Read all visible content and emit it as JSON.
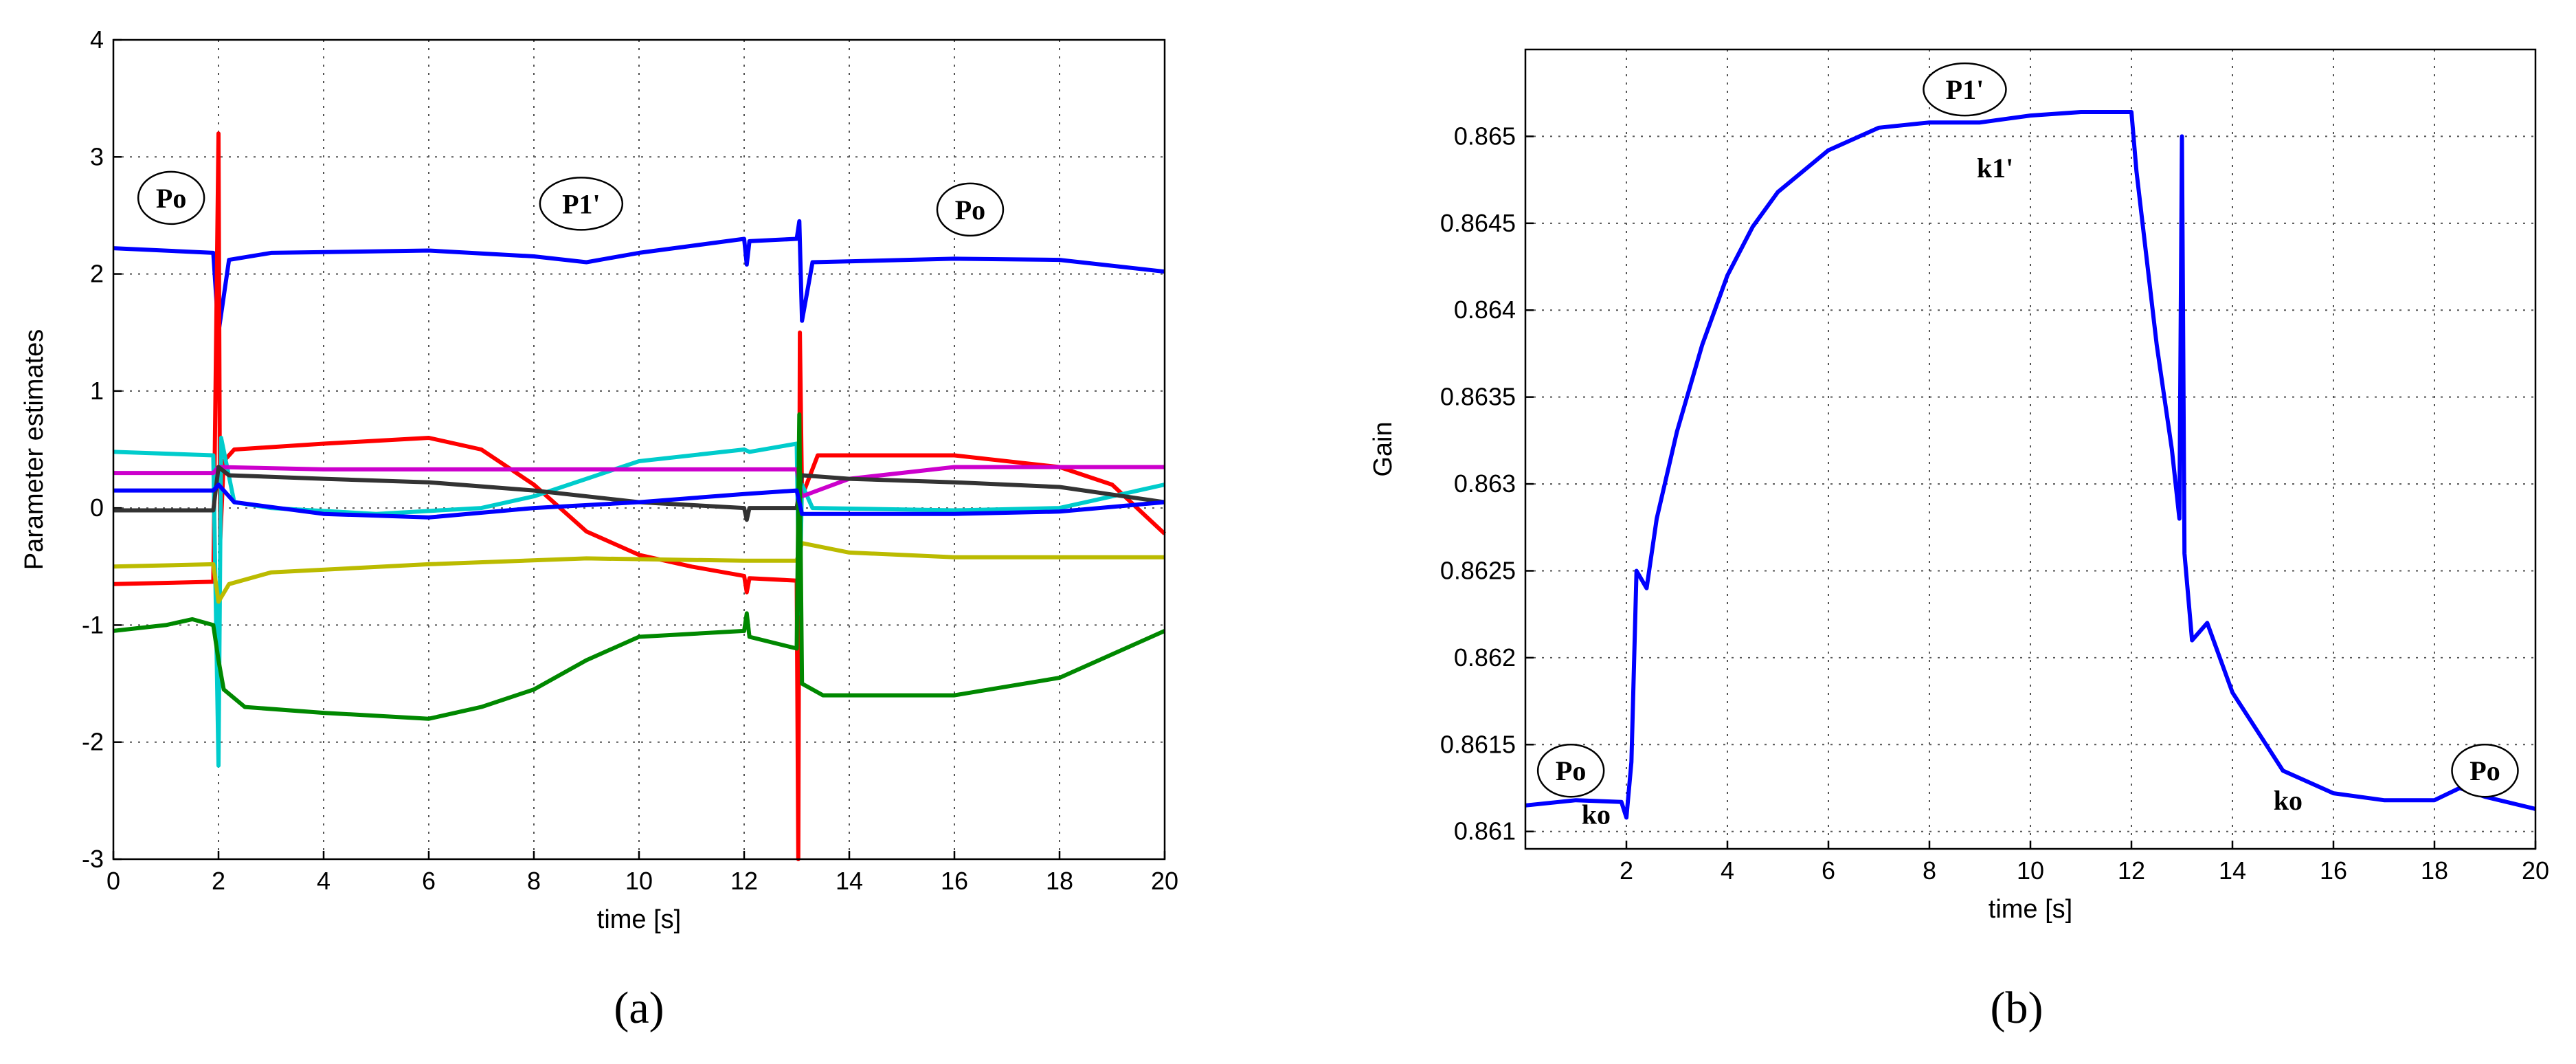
{
  "chart_data": [
    {
      "type": "line",
      "panel_label": "(a)",
      "xlabel": "time [s]",
      "ylabel": "Parameter estimates",
      "xlim": [
        0,
        20
      ],
      "ylim": [
        -3,
        4
      ],
      "xticks": [
        "0",
        "2",
        "4",
        "6",
        "8",
        "10",
        "12",
        "14",
        "16",
        "18",
        "20"
      ],
      "yticks": [
        "-3",
        "-2",
        "-1",
        "0",
        "1",
        "2",
        "3",
        "4"
      ],
      "grid": true,
      "annotations": [
        {
          "text": "Po",
          "x": 1.1,
          "y": 2.65,
          "circled": true
        },
        {
          "text": "P1'",
          "x": 8.9,
          "y": 2.6,
          "circled": true
        },
        {
          "text": "Po",
          "x": 16.3,
          "y": 2.55,
          "circled": true
        }
      ],
      "series": [
        {
          "color": "#0000ff",
          "points": [
            [
              0,
              2.22
            ],
            [
              1.9,
              2.18
            ],
            [
              2,
              1.5
            ],
            [
              2.2,
              2.12
            ],
            [
              3,
              2.18
            ],
            [
              6,
              2.2
            ],
            [
              8,
              2.15
            ],
            [
              9,
              2.1
            ],
            [
              10,
              2.18
            ],
            [
              12,
              2.3
            ],
            [
              12.05,
              2.08
            ],
            [
              12.1,
              2.28
            ],
            [
              13,
              2.3
            ],
            [
              13.05,
              2.45
            ],
            [
              13.1,
              1.6
            ],
            [
              13.3,
              2.1
            ],
            [
              16,
              2.13
            ],
            [
              18,
              2.12
            ],
            [
              20,
              2.02
            ]
          ]
        },
        {
          "color": "#ff0000",
          "points": [
            [
              0,
              -0.65
            ],
            [
              1.9,
              -0.63
            ],
            [
              2,
              3.2
            ],
            [
              2.03,
              -0.3
            ],
            [
              2.1,
              0.4
            ],
            [
              2.3,
              0.5
            ],
            [
              4,
              0.55
            ],
            [
              6,
              0.6
            ],
            [
              7,
              0.5
            ],
            [
              8,
              0.2
            ],
            [
              9,
              -0.2
            ],
            [
              10,
              -0.4
            ],
            [
              11,
              -0.5
            ],
            [
              12,
              -0.58
            ],
            [
              12.05,
              -0.72
            ],
            [
              12.1,
              -0.6
            ],
            [
              13,
              -0.62
            ],
            [
              13.03,
              -3
            ],
            [
              13.06,
              1.5
            ],
            [
              13.1,
              0.1
            ],
            [
              13.4,
              0.45
            ],
            [
              16,
              0.45
            ],
            [
              18,
              0.35
            ],
            [
              19,
              0.2
            ],
            [
              20,
              -0.22
            ]
          ]
        },
        {
          "color": "#00cccc",
          "points": [
            [
              0,
              0.48
            ],
            [
              1.9,
              0.45
            ],
            [
              2,
              -2.2
            ],
            [
              2.05,
              0.6
            ],
            [
              2.3,
              0.05
            ],
            [
              3,
              0
            ],
            [
              5,
              -0.05
            ],
            [
              7,
              0
            ],
            [
              8,
              0.1
            ],
            [
              9,
              0.25
            ],
            [
              10,
              0.4
            ],
            [
              12,
              0.5
            ],
            [
              12.1,
              0.48
            ],
            [
              13,
              0.55
            ],
            [
              13.05,
              -0.9
            ],
            [
              13.1,
              0.2
            ],
            [
              13.3,
              0.0
            ],
            [
              16,
              -0.02
            ],
            [
              18,
              0
            ],
            [
              20,
              0.2
            ]
          ]
        },
        {
          "color": "#cc00cc",
          "points": [
            [
              0,
              0.3
            ],
            [
              1.9,
              0.3
            ],
            [
              2,
              0.35
            ],
            [
              4,
              0.33
            ],
            [
              6,
              0.33
            ],
            [
              8,
              0.33
            ],
            [
              10,
              0.33
            ],
            [
              12,
              0.33
            ],
            [
              13,
              0.33
            ],
            [
              13.1,
              0.1
            ],
            [
              14,
              0.25
            ],
            [
              16,
              0.35
            ],
            [
              20,
              0.35
            ]
          ]
        },
        {
          "color": "#333333",
          "points": [
            [
              0,
              -0.02
            ],
            [
              1.9,
              -0.02
            ],
            [
              2,
              0.35
            ],
            [
              2.2,
              0.28
            ],
            [
              4,
              0.25
            ],
            [
              6,
              0.22
            ],
            [
              8,
              0.15
            ],
            [
              10,
              0.05
            ],
            [
              12,
              0.0
            ],
            [
              12.05,
              -0.1
            ],
            [
              12.1,
              0.0
            ],
            [
              13,
              0.0
            ],
            [
              13.1,
              0.28
            ],
            [
              14,
              0.25
            ],
            [
              16,
              0.22
            ],
            [
              18,
              0.18
            ],
            [
              20,
              0.05
            ]
          ]
        },
        {
          "color": "#bbbb00",
          "points": [
            [
              0,
              -0.5
            ],
            [
              1.9,
              -0.48
            ],
            [
              2,
              -0.8
            ],
            [
              2.2,
              -0.65
            ],
            [
              3,
              -0.55
            ],
            [
              6,
              -0.48
            ],
            [
              9,
              -0.43
            ],
            [
              12,
              -0.45
            ],
            [
              13,
              -0.45
            ],
            [
              13.1,
              -0.3
            ],
            [
              14,
              -0.38
            ],
            [
              16,
              -0.42
            ],
            [
              20,
              -0.42
            ]
          ]
        },
        {
          "color": "#008800",
          "points": [
            [
              0,
              -1.05
            ],
            [
              1,
              -1
            ],
            [
              1.5,
              -0.95
            ],
            [
              1.9,
              -1
            ],
            [
              2,
              -1.3
            ],
            [
              2.1,
              -1.55
            ],
            [
              2.5,
              -1.7
            ],
            [
              4,
              -1.75
            ],
            [
              6,
              -1.8
            ],
            [
              7,
              -1.7
            ],
            [
              8,
              -1.55
            ],
            [
              9,
              -1.3
            ],
            [
              10,
              -1.1
            ],
            [
              12,
              -1.05
            ],
            [
              12.05,
              -0.9
            ],
            [
              12.1,
              -1.1
            ],
            [
              13,
              -1.2
            ],
            [
              13.05,
              0.8
            ],
            [
              13.1,
              -1.5
            ],
            [
              13.5,
              -1.6
            ],
            [
              16,
              -1.6
            ],
            [
              18,
              -1.45
            ],
            [
              20,
              -1.05
            ]
          ]
        },
        {
          "color": "#0000ff",
          "points": [
            [
              0,
              0.15
            ],
            [
              1.9,
              0.15
            ],
            [
              2,
              0.2
            ],
            [
              2.3,
              0.05
            ],
            [
              4,
              -0.05
            ],
            [
              6,
              -0.08
            ],
            [
              8,
              0.0
            ],
            [
              10,
              0.05
            ],
            [
              12,
              0.12
            ],
            [
              13,
              0.15
            ],
            [
              13.1,
              -0.05
            ],
            [
              14,
              -0.05
            ],
            [
              16,
              -0.05
            ],
            [
              18,
              -0.03
            ],
            [
              20,
              0.05
            ]
          ]
        }
      ]
    },
    {
      "type": "line",
      "panel_label": "(b)",
      "xlabel": "time [s]",
      "ylabel": "Gain",
      "xlim": [
        0,
        20
      ],
      "ylim": [
        0.8609,
        0.8655
      ],
      "xticks": [
        "2",
        "4",
        "6",
        "8",
        "10",
        "12",
        "14",
        "16",
        "18",
        "20"
      ],
      "yticks": [
        "0.861",
        "0.8615",
        "0.862",
        "0.8625",
        "0.863",
        "0.8635",
        "0.864",
        "0.8645",
        "0.865"
      ],
      "grid": true,
      "annotations": [
        {
          "text": "Po",
          "x": 0.9,
          "y": 0.86135,
          "circled": true
        },
        {
          "text": "ko",
          "x": 1.4,
          "y": 0.8611,
          "circled": false
        },
        {
          "text": "P1'",
          "x": 8.7,
          "y": 0.86527,
          "circled": true
        },
        {
          "text": "k1'",
          "x": 9.3,
          "y": 0.86482,
          "circled": false
        },
        {
          "text": "ko",
          "x": 15.1,
          "y": 0.86118,
          "circled": false
        },
        {
          "text": "Po",
          "x": 19.0,
          "y": 0.86135,
          "circled": true
        }
      ],
      "series": [
        {
          "color": "#0000ff",
          "points": [
            [
              0,
              0.86115
            ],
            [
              1,
              0.86118
            ],
            [
              1.9,
              0.86117
            ],
            [
              2,
              0.86108
            ],
            [
              2.1,
              0.8614
            ],
            [
              2.2,
              0.8625
            ],
            [
              2.4,
              0.8624
            ],
            [
              2.6,
              0.8628
            ],
            [
              3,
              0.8633
            ],
            [
              3.5,
              0.8638
            ],
            [
              4,
              0.8642
            ],
            [
              4.5,
              0.86448
            ],
            [
              5,
              0.86468
            ],
            [
              6,
              0.86492
            ],
            [
              7,
              0.86505
            ],
            [
              8,
              0.86508
            ],
            [
              9,
              0.86508
            ],
            [
              10,
              0.86512
            ],
            [
              11,
              0.86514
            ],
            [
              12,
              0.86514
            ],
            [
              12.1,
              0.8648
            ],
            [
              12.5,
              0.8638
            ],
            [
              12.8,
              0.8632
            ],
            [
              12.95,
              0.8628
            ],
            [
              13,
              0.865
            ],
            [
              13.05,
              0.8626
            ],
            [
              13.2,
              0.8621
            ],
            [
              13.5,
              0.8622
            ],
            [
              14,
              0.8618
            ],
            [
              15,
              0.86135
            ],
            [
              16,
              0.86122
            ],
            [
              17,
              0.86118
            ],
            [
              18,
              0.86118
            ],
            [
              18.5,
              0.86125
            ],
            [
              19,
              0.8612
            ],
            [
              20,
              0.86113
            ]
          ]
        }
      ]
    }
  ]
}
